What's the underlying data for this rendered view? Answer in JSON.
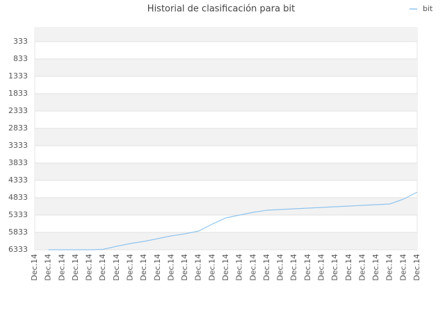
{
  "chart_data": {
    "type": "line",
    "title": "Historial de clasificación para bit",
    "categories": [
      "Dec.14",
      "Dec.14",
      "Dec.14",
      "Dec.14",
      "Dec.14",
      "Dec.14",
      "Dec.14",
      "Dec.14",
      "Dec.14",
      "Dec.14",
      "Dec.14",
      "Dec.14",
      "Dec.14",
      "Dec.14",
      "Dec.14",
      "Dec.14",
      "Dec.14",
      "Dec.14",
      "Dec.14",
      "Dec.14",
      "Dec.14",
      "Dec.14",
      "Dec.14",
      "Dec.14",
      "Dec.14",
      "Dec.14",
      "Dec.14",
      "Dec.14",
      "Dec.14"
    ],
    "series": [
      {
        "name": "bit",
        "color": "#90c4ee",
        "values": [
          null,
          6333,
          6333,
          6333,
          6333,
          6320,
          6233,
          6153,
          6093,
          6013,
          5933,
          5873,
          5793,
          5593,
          5413,
          5333,
          5253,
          5193,
          5173,
          5153,
          5133,
          5113,
          5093,
          5073,
          5053,
          5033,
          5013,
          4873,
          4673
        ]
      }
    ],
    "ylim": [
      6333,
      -67
    ],
    "yticks": [
      333,
      833,
      1333,
      1833,
      2333,
      2833,
      3333,
      3833,
      4333,
      4833,
      5333,
      5833,
      6333
    ],
    "grid": true,
    "legend": "top-right"
  }
}
